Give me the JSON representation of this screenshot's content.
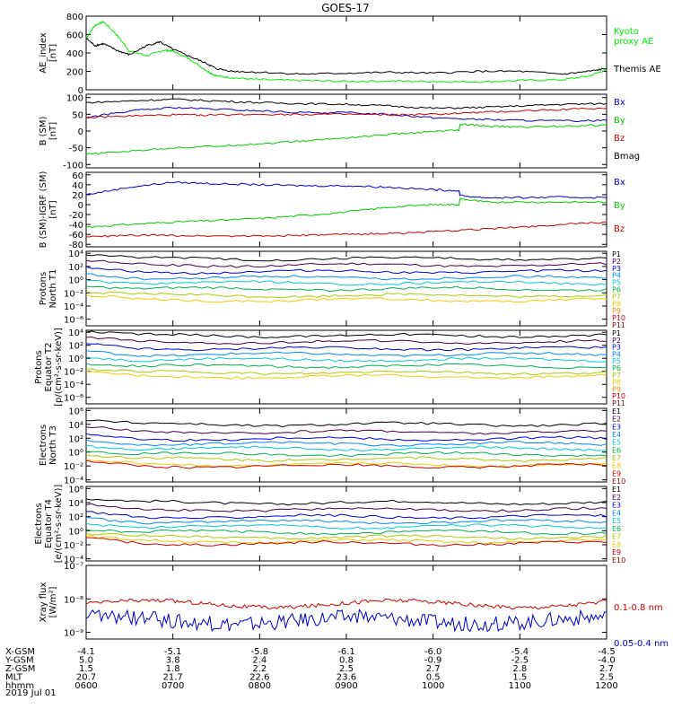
{
  "title": "GOES-17",
  "date": "2019 Jul 01",
  "chart_data": [
    {
      "id": "ae",
      "type": "line",
      "ylabel": "AE_index\n[nT]",
      "scale": "linear",
      "ylim": [
        0,
        800
      ],
      "ticks": [
        "800",
        "600",
        "400",
        "200",
        "0"
      ],
      "tickvals": [
        800,
        600,
        400,
        200,
        0
      ],
      "legend": [
        {
          "text": "Kyoto",
          "color": "#00ee00"
        },
        {
          "text": "proxy AE",
          "color": "#00ee00"
        },
        {
          "text": "Themis AE",
          "color": "#000000"
        }
      ],
      "series": [
        {
          "name": "Kyoto proxy AE",
          "color": "#00ee00",
          "x": [
            0,
            0.1,
            0.2,
            0.35,
            0.5,
            0.7,
            0.9,
            1.0,
            1.2,
            1.4,
            1.5,
            1.7,
            2.0,
            2.5,
            3.0,
            3.5,
            4.0,
            4.5,
            5.0,
            5.5,
            5.8,
            6.0
          ],
          "values": [
            560,
            700,
            740,
            600,
            420,
            370,
            430,
            420,
            330,
            200,
            150,
            130,
            110,
            100,
            90,
            95,
            90,
            85,
            100,
            110,
            150,
            220
          ]
        },
        {
          "name": "Themis AE",
          "color": "#000000",
          "x": [
            0,
            0.1,
            0.2,
            0.35,
            0.5,
            0.7,
            0.85,
            1.0,
            1.2,
            1.4,
            1.5,
            1.7,
            2.0,
            2.5,
            3.0,
            3.5,
            4.0,
            4.5,
            5.0,
            5.5,
            5.8,
            6.0
          ],
          "values": [
            560,
            480,
            500,
            430,
            380,
            480,
            520,
            440,
            360,
            280,
            230,
            200,
            190,
            170,
            180,
            190,
            180,
            200,
            200,
            170,
            200,
            230
          ]
        }
      ]
    },
    {
      "id": "bsm",
      "type": "line",
      "ylabel": "B (SM)\n[nT]",
      "scale": "linear",
      "ylim": [
        -110,
        110
      ],
      "ticks": [
        "100",
        "50",
        "0",
        "-50",
        "-100"
      ],
      "tickvals": [
        100,
        50,
        0,
        -50,
        -100
      ],
      "legend": [
        {
          "text": "Bx",
          "color": "#0000cc"
        },
        {
          "text": "By",
          "color": "#00cc00"
        },
        {
          "text": "Bz",
          "color": "#cc0000"
        },
        {
          "text": "Bmag",
          "color": "#000000"
        }
      ],
      "series": [
        {
          "name": "Bx",
          "color": "#0000cc",
          "x": [
            0,
            0.5,
            1.0,
            1.5,
            2.0,
            2.5,
            3.0,
            3.5,
            4.0,
            4.5,
            5.0,
            5.5,
            6.0
          ],
          "values": [
            40,
            60,
            70,
            65,
            60,
            55,
            55,
            50,
            40,
            35,
            32,
            30,
            32
          ]
        },
        {
          "name": "By",
          "color": "#00cc00",
          "x": [
            0,
            0.5,
            1.0,
            1.5,
            2.0,
            2.5,
            3.0,
            3.5,
            4.0,
            4.3,
            4.31,
            4.6,
            5.0,
            5.5,
            6.0
          ],
          "values": [
            -70,
            -60,
            -50,
            -45,
            -38,
            -30,
            -20,
            -10,
            -2,
            2,
            20,
            15,
            12,
            15,
            18
          ]
        },
        {
          "name": "Bz",
          "color": "#cc0000",
          "x": [
            0,
            0.5,
            1.0,
            1.5,
            2.0,
            2.5,
            3.0,
            3.5,
            4.0,
            4.5,
            5.0,
            5.5,
            6.0
          ],
          "values": [
            40,
            45,
            48,
            48,
            50,
            50,
            50,
            48,
            50,
            55,
            60,
            65,
            68
          ]
        },
        {
          "name": "Bmag",
          "color": "#000000",
          "x": [
            0,
            0.5,
            1.0,
            1.5,
            2.0,
            2.5,
            3.0,
            3.5,
            4.0,
            4.5,
            5.0,
            5.5,
            6.0
          ],
          "values": [
            85,
            90,
            95,
            90,
            85,
            82,
            80,
            75,
            68,
            70,
            75,
            80,
            82
          ]
        }
      ]
    },
    {
      "id": "bigrf",
      "type": "line",
      "ylabel": "B (SM)-IGRF (SM)\n[nT]",
      "scale": "linear",
      "ylim": [
        -85,
        65
      ],
      "ticks": [
        "60",
        "40",
        "20",
        "0",
        "-20",
        "-40",
        "-60",
        "-80"
      ],
      "tickvals": [
        60,
        40,
        20,
        0,
        -20,
        -40,
        -60,
        -80
      ],
      "legend": [
        {
          "text": "Bx",
          "color": "#0000cc"
        },
        {
          "text": "By",
          "color": "#00cc00"
        },
        {
          "text": "Bz",
          "color": "#cc0000"
        }
      ],
      "series": [
        {
          "name": "Bx",
          "color": "#0000cc",
          "x": [
            0,
            0.5,
            1.0,
            1.5,
            2.0,
            2.5,
            3.0,
            3.5,
            4.0,
            4.3,
            4.31,
            4.6,
            5.0,
            5.5,
            6.0
          ],
          "values": [
            20,
            35,
            45,
            42,
            40,
            38,
            38,
            35,
            30,
            28,
            18,
            14,
            14,
            15,
            14
          ]
        },
        {
          "name": "By",
          "color": "#00cc00",
          "x": [
            0,
            0.5,
            1.0,
            1.5,
            2.0,
            2.5,
            3.0,
            3.5,
            4.0,
            4.3,
            4.31,
            4.6,
            5.0,
            5.5,
            6.0
          ],
          "values": [
            -45,
            -40,
            -35,
            -32,
            -28,
            -22,
            -15,
            -5,
            0,
            0,
            12,
            5,
            5,
            5,
            5
          ]
        },
        {
          "name": "Bz",
          "color": "#cc0000",
          "x": [
            0,
            0.5,
            1.0,
            1.5,
            2.0,
            2.5,
            3.0,
            3.5,
            4.0,
            4.5,
            5.0,
            5.5,
            6.0
          ],
          "values": [
            -65,
            -62,
            -62,
            -63,
            -63,
            -62,
            -60,
            -58,
            -55,
            -50,
            -45,
            -40,
            -35
          ]
        }
      ]
    },
    {
      "id": "pn",
      "type": "line",
      "ylabel": "Protons\nNorth T1",
      "scale": "log",
      "ylim": [
        -7,
        4.3
      ],
      "ticks": [
        "10⁴",
        "10²",
        "10⁰",
        "10⁻²",
        "10⁻⁴",
        "10⁻⁶"
      ],
      "tickvals": [
        4,
        2,
        0,
        -2,
        -4,
        -6
      ],
      "legend": [
        {
          "text": "P1",
          "color": "#000000"
        },
        {
          "text": "P2",
          "color": "#440044"
        },
        {
          "text": "P3",
          "color": "#0000dd"
        },
        {
          "text": "P4",
          "color": "#0088ff"
        },
        {
          "text": "P5",
          "color": "#00cccc"
        },
        {
          "text": "P6",
          "color": "#00b050"
        },
        {
          "text": "P7",
          "color": "#aacc00"
        },
        {
          "text": "P8",
          "color": "#eecc00"
        },
        {
          "text": "P9",
          "color": "#ff8800"
        },
        {
          "text": "P10",
          "color": "#cc0000"
        },
        {
          "text": "P11",
          "color": "#990000"
        }
      ],
      "series": [
        {
          "name": "P1",
          "color": "#000000",
          "level": 3.2
        },
        {
          "name": "P2",
          "color": "#440044",
          "level": 2.2
        },
        {
          "name": "P3",
          "color": "#0000dd",
          "level": 1.2
        },
        {
          "name": "P4",
          "color": "#0088ff",
          "level": 0.3
        },
        {
          "name": "P5",
          "color": "#00cccc",
          "level": -0.5
        },
        {
          "name": "P6",
          "color": "#00b050",
          "level": -1.4
        },
        {
          "name": "P7",
          "color": "#aacc00",
          "level": -2.4
        },
        {
          "name": "P8",
          "color": "#eecc00",
          "level": -3.1
        }
      ]
    },
    {
      "id": "pe",
      "type": "line",
      "ylabel": "Protons\nEquator T2\n[p/(cm²-s-sr-keV)]",
      "scale": "log",
      "ylim": [
        -7,
        4.3
      ],
      "ticks": [
        "10⁴",
        "10²",
        "10⁰",
        "10⁻²",
        "10⁻⁴",
        "10⁻⁶"
      ],
      "tickvals": [
        4,
        2,
        0,
        -2,
        -4,
        -6
      ],
      "legend": [
        {
          "text": "P1",
          "color": "#000000"
        },
        {
          "text": "P2",
          "color": "#440044"
        },
        {
          "text": "P3",
          "color": "#0000dd"
        },
        {
          "text": "P4",
          "color": "#0088ff"
        },
        {
          "text": "P5",
          "color": "#00cccc"
        },
        {
          "text": "P6",
          "color": "#00b050"
        },
        {
          "text": "P7",
          "color": "#aacc00"
        },
        {
          "text": "P8",
          "color": "#eecc00"
        },
        {
          "text": "P9",
          "color": "#ff8800"
        },
        {
          "text": "P10",
          "color": "#cc0000"
        },
        {
          "text": "P11",
          "color": "#990000"
        }
      ],
      "series": [
        {
          "name": "P1",
          "color": "#000000",
          "level": 3.5
        },
        {
          "name": "P2",
          "color": "#440044",
          "level": 2.5
        },
        {
          "name": "P3",
          "color": "#0000dd",
          "level": 1.5
        },
        {
          "name": "P4",
          "color": "#0088ff",
          "level": 0.6
        },
        {
          "name": "P5",
          "color": "#00cccc",
          "level": -0.2
        },
        {
          "name": "P6",
          "color": "#00b050",
          "level": -1.2
        },
        {
          "name": "P7",
          "color": "#aacc00",
          "level": -2.2
        },
        {
          "name": "P8",
          "color": "#eecc00",
          "level": -2.8
        }
      ]
    },
    {
      "id": "en",
      "type": "line",
      "ylabel": "Electrons\nNorth T3",
      "scale": "log",
      "ylim": [
        -4.3,
        6.3
      ],
      "ticks": [
        "10⁶",
        "10⁴",
        "10²",
        "10⁰",
        "10⁻²",
        "10⁻⁴"
      ],
      "tickvals": [
        6,
        4,
        2,
        0,
        -2,
        -4
      ],
      "legend": [
        {
          "text": "E1",
          "color": "#000000"
        },
        {
          "text": "E2",
          "color": "#440044"
        },
        {
          "text": "E3",
          "color": "#0000dd"
        },
        {
          "text": "E4",
          "color": "#0088ff"
        },
        {
          "text": "E5",
          "color": "#00cccc"
        },
        {
          "text": "E6",
          "color": "#00b050"
        },
        {
          "text": "E7",
          "color": "#aacc00"
        },
        {
          "text": "E8",
          "color": "#eecc00"
        },
        {
          "text": "E9",
          "color": "#cc0000"
        },
        {
          "text": "E10",
          "color": "#990000"
        }
      ],
      "series": [
        {
          "name": "E1",
          "color": "#000000",
          "level": 4.0
        },
        {
          "name": "E2",
          "color": "#440044",
          "level": 2.9
        },
        {
          "name": "E3",
          "color": "#0000dd",
          "level": 1.9
        },
        {
          "name": "E4",
          "color": "#0088ff",
          "level": 1.2
        },
        {
          "name": "E5",
          "color": "#00cccc",
          "level": 0.5
        },
        {
          "name": "E6",
          "color": "#00b050",
          "level": -0.3
        },
        {
          "name": "E7",
          "color": "#aacc00",
          "level": -1.0
        },
        {
          "name": "E8",
          "color": "#eecc00",
          "level": -1.8
        },
        {
          "name": "E9",
          "color": "#cc0000",
          "level": -2.0
        }
      ]
    },
    {
      "id": "ee",
      "type": "line",
      "ylabel": "Electrons\nEquator T4\n[e/(cm²-s-sr-keV)]",
      "scale": "log",
      "ylim": [
        -4.3,
        6.3
      ],
      "ticks": [
        "10⁶",
        "10⁴",
        "10²",
        "10⁰",
        "10⁻²",
        "10⁻⁴"
      ],
      "tickvals": [
        6,
        4,
        2,
        0,
        -2,
        -4
      ],
      "legend": [
        {
          "text": "E1",
          "color": "#000000"
        },
        {
          "text": "E2",
          "color": "#440044"
        },
        {
          "text": "E3",
          "color": "#0000dd"
        },
        {
          "text": "E4",
          "color": "#0088ff"
        },
        {
          "text": "E5",
          "color": "#00cccc"
        },
        {
          "text": "E6",
          "color": "#00b050"
        },
        {
          "text": "E7",
          "color": "#aacc00"
        },
        {
          "text": "E8",
          "color": "#eecc00"
        },
        {
          "text": "E9",
          "color": "#cc0000"
        },
        {
          "text": "E10",
          "color": "#990000"
        }
      ],
      "series": [
        {
          "name": "E1",
          "color": "#000000",
          "level": 4.0
        },
        {
          "name": "E2",
          "color": "#440044",
          "level": 3.0
        },
        {
          "name": "E3",
          "color": "#0000dd",
          "level": 2.0
        },
        {
          "name": "E4",
          "color": "#0088ff",
          "level": 1.3
        },
        {
          "name": "E5",
          "color": "#00cccc",
          "level": 0.6
        },
        {
          "name": "E6",
          "color": "#00b050",
          "level": -0.2
        },
        {
          "name": "E7",
          "color": "#aacc00",
          "level": -0.9
        },
        {
          "name": "E8",
          "color": "#eecc00",
          "level": -1.5
        },
        {
          "name": "E9",
          "color": "#cc0000",
          "level": -1.8
        }
      ]
    },
    {
      "id": "xray",
      "type": "line",
      "ylabel": "Xray flux\n[W/m²]",
      "scale": "log",
      "ylim": [
        -9.2,
        -7
      ],
      "ticks": [
        "10⁻⁷",
        "10⁻⁸",
        "10⁻⁹"
      ],
      "tickvals": [
        -7,
        -8,
        -9
      ],
      "legend": [
        {
          "text": "0.1-0.8 nm",
          "color": "#cc0000"
        },
        {
          "text": "0.05-0.4 nm",
          "color": "#0000cc"
        }
      ],
      "series": [
        {
          "name": "0.1-0.8 nm",
          "color": "#cc0000",
          "level": -8.15
        },
        {
          "name": "0.05-0.4 nm",
          "color": "#0000cc",
          "level": -8.65
        }
      ]
    }
  ],
  "x_axis": {
    "tick_hours": [
      0,
      1,
      2,
      3,
      4,
      5,
      6
    ],
    "rows": [
      {
        "label": "X-GSM",
        "values": [
          "-4.1",
          "-5.1",
          "-5.8",
          "-6.1",
          "-6.0",
          "-5.4",
          "-4.5"
        ]
      },
      {
        "label": "Y-GSM",
        "values": [
          "5.0",
          "3.8",
          "2.4",
          "0.8",
          "-0.9",
          "-2.5",
          "-4.0"
        ]
      },
      {
        "label": "Z-GSM",
        "values": [
          "1.5",
          "1.8",
          "2.2",
          "2.5",
          "2.7",
          "2.8",
          "2.7"
        ]
      },
      {
        "label": "MLT",
        "values": [
          "20.7",
          "21.7",
          "22.6",
          "23.6",
          "0.5",
          "1.5",
          "2.5"
        ]
      },
      {
        "label": "hhmm",
        "values": [
          "0600",
          "0700",
          "0800",
          "0900",
          "1000",
          "1100",
          "1200"
        ]
      }
    ]
  }
}
